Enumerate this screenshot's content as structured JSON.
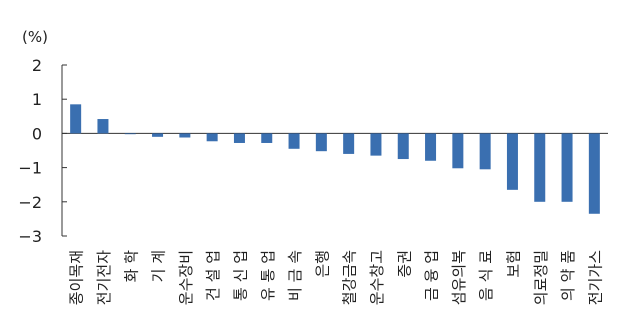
{
  "chart_data": {
    "type": "bar",
    "unit_label": "(%)",
    "categories": [
      "종이목재",
      "전기전자",
      "화  학",
      "기  계",
      "운수장비",
      "건 설 업",
      "통 신 업",
      "유 통 업",
      "비 금 속",
      "은행",
      "철강금속",
      "운수창고",
      "증권",
      "금 융 업",
      "섬유의복",
      "음 식 료",
      "보험",
      "의료정밀",
      "의 약 품",
      "전기가스"
    ],
    "values": [
      0.85,
      0.42,
      -0.02,
      -0.1,
      -0.12,
      -0.23,
      -0.28,
      -0.28,
      -0.45,
      -0.52,
      -0.6,
      -0.65,
      -0.75,
      -0.8,
      -1.02,
      -1.05,
      -1.65,
      -2.0,
      -2.0,
      -2.35
    ],
    "yticks": [
      2,
      1,
      0,
      -1,
      -2,
      -3
    ],
    "ylim": [
      -3,
      2
    ],
    "bar_color": "#3a6fb0",
    "xlabel": "",
    "ylabel": ""
  }
}
